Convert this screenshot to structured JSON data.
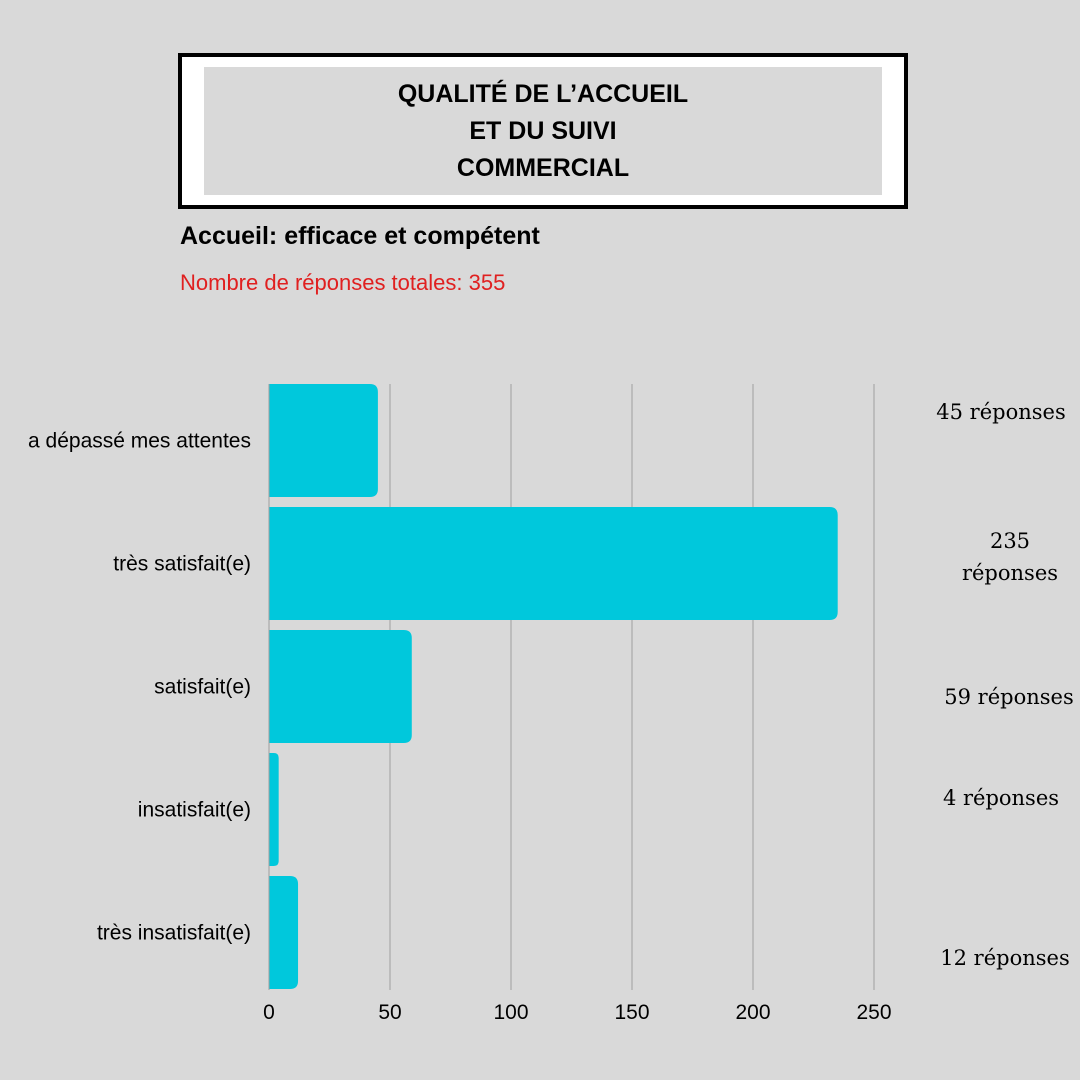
{
  "header": {
    "title_lines": [
      "QUALITÉ DE L’ACCUEIL",
      "ET DU SUIVI",
      "COMMERCIAL"
    ],
    "subtitle": "Accueil: efficace et compétent",
    "total_responses": "Nombre de réponses totales: 355"
  },
  "colors": {
    "bar": "#00c8dc",
    "grid": "#9e9e9e",
    "total_text": "#e02020",
    "background": "#d9d9d9"
  },
  "chart_data": {
    "type": "bar",
    "orientation": "horizontal",
    "categories": [
      "a dépassé mes attentes",
      "très satisfait(e)",
      "satisfait(e)",
      "insatisfait(e)",
      "très insatisfait(e)"
    ],
    "values": [
      45,
      235,
      59,
      4,
      12
    ],
    "value_labels": [
      [
        "45 réponses"
      ],
      [
        "235",
        "réponses"
      ],
      [
        "59 réponses"
      ],
      [
        "4 réponses"
      ],
      [
        "12 réponses"
      ]
    ],
    "xlim": [
      0,
      250
    ],
    "xticks": [
      0,
      50,
      100,
      150,
      200,
      250
    ],
    "grid": true
  }
}
